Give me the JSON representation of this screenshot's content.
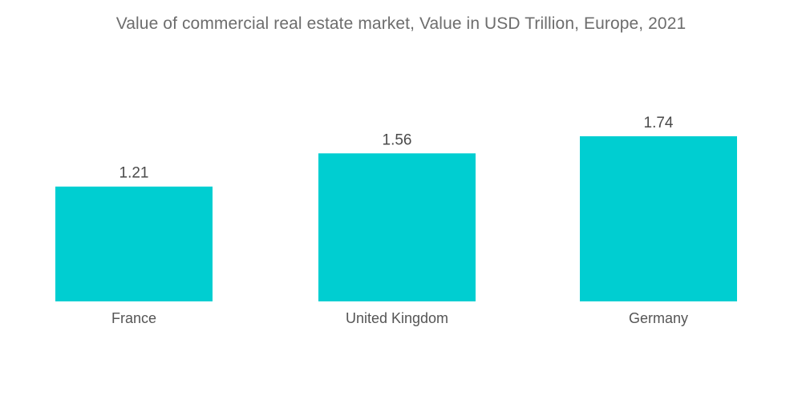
{
  "chart_data": {
    "type": "bar",
    "title": "Value of commercial real estate market, Value in USD Trillion, Europe, 2021",
    "xlabel": "",
    "ylabel": "",
    "categories": [
      "France",
      "United Kingdom",
      "Germany"
    ],
    "values": [
      1.21,
      1.56,
      1.74
    ],
    "value_labels": [
      "1.21",
      "1.56",
      "1.74"
    ],
    "ylim": [
      0,
      1.74
    ],
    "grid": false,
    "legend": "none",
    "bar_color": "#00ced1"
  }
}
